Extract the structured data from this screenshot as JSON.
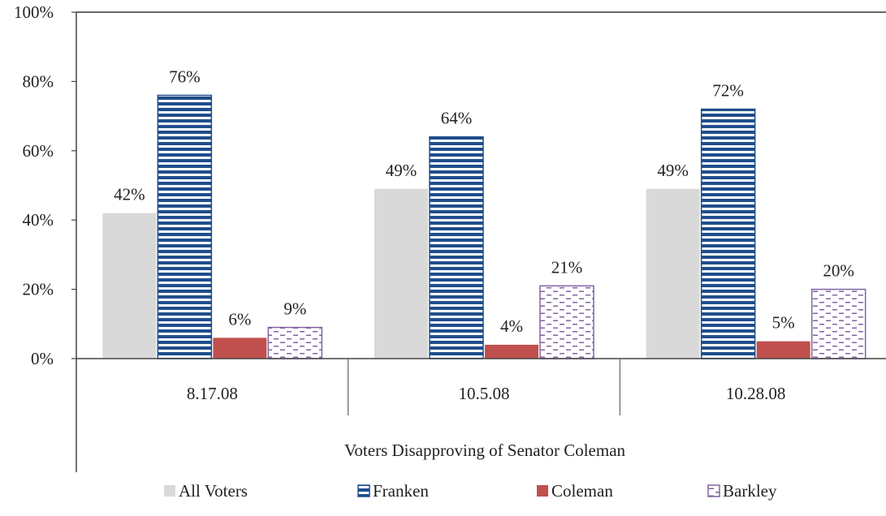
{
  "chart_data": {
    "type": "bar",
    "categories": [
      "8.17.08",
      "10.5.08",
      "10.28.08"
    ],
    "group_label": "Voters Disapproving of Senator Coleman",
    "series": [
      {
        "name": "All Voters",
        "values": [
          42,
          49,
          49
        ],
        "labels": [
          "42%",
          "49%",
          "49%"
        ],
        "color": "#d9d9d9",
        "fill": "solid"
      },
      {
        "name": "Franken",
        "values": [
          76,
          64,
          72
        ],
        "labels": [
          "76%",
          "64%",
          "72%"
        ],
        "color": "#1f4e8c",
        "fill": "horizontal-stripes"
      },
      {
        "name": "Coleman",
        "values": [
          6,
          4,
          5
        ],
        "labels": [
          "6%",
          "4%",
          "5%"
        ],
        "color": "#c0504d",
        "fill": "solid"
      },
      {
        "name": "Barkley",
        "values": [
          9,
          21,
          20
        ],
        "labels": [
          "9%",
          "21%",
          "20%"
        ],
        "color": "#8064a2",
        "fill": "dashed-lines"
      }
    ],
    "y_ticks": [
      "0%",
      "20%",
      "40%",
      "60%",
      "80%",
      "100%"
    ],
    "ylim": [
      0,
      100
    ],
    "grid": false,
    "legend_position": "bottom"
  }
}
